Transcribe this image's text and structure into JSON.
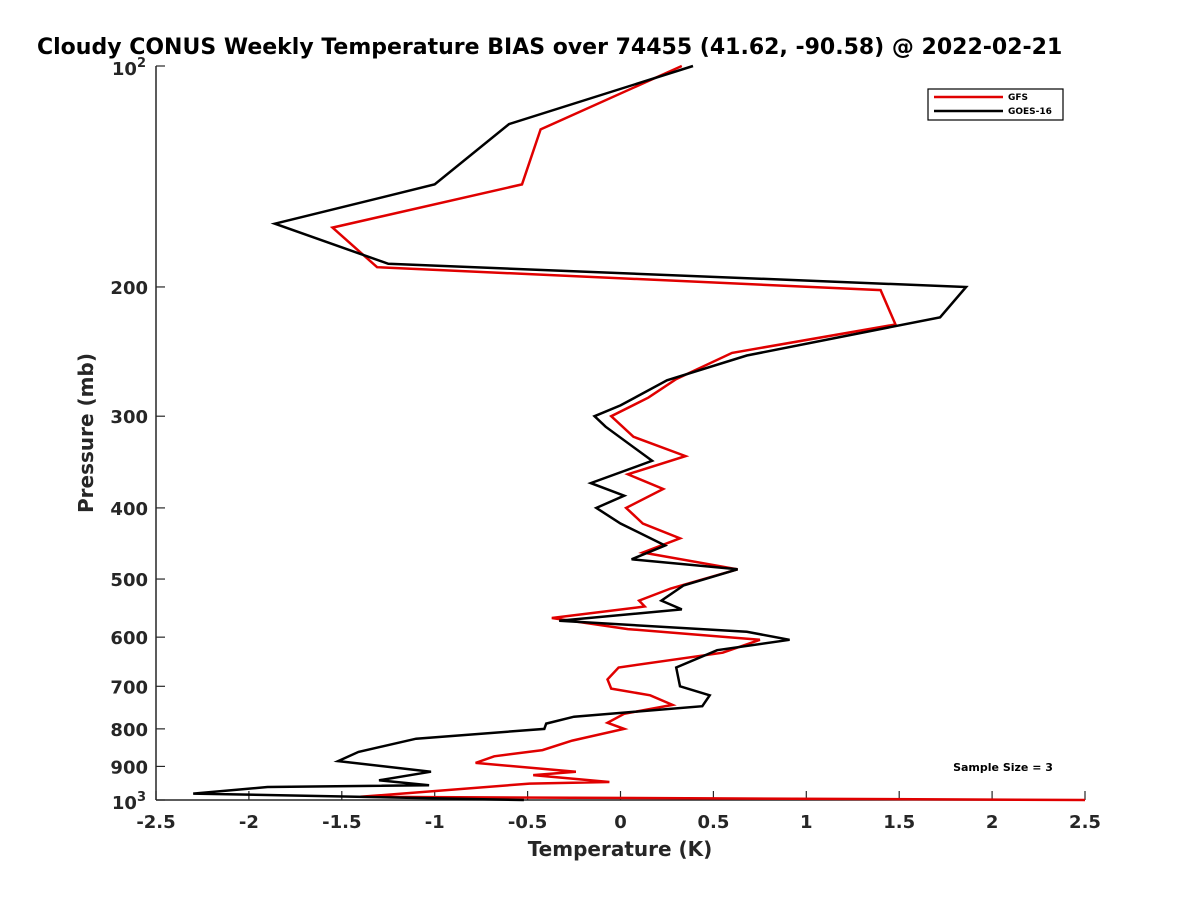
{
  "chart_data": {
    "type": "line",
    "title": "Cloudy CONUS Weekly Temperature BIAS over 74455 (41.62, -90.58) @ 2022-02-21",
    "xlabel": "Temperature (K)",
    "ylabel": "Pressure (mb)",
    "xlim": [
      -2.5,
      2.5
    ],
    "ylim": [
      100,
      1000
    ],
    "y_scale": "log",
    "y_reversed": true,
    "x_ticks": [
      "-2.5",
      "-2",
      "-1.5",
      "-1",
      "-0.5",
      "0",
      "0.5",
      "1",
      "1.5",
      "2",
      "2.5"
    ],
    "y_ticks": [
      {
        "value": 100,
        "base": "10",
        "exp": "2"
      },
      {
        "value": 200,
        "label": "200"
      },
      {
        "value": 300,
        "label": "300"
      },
      {
        "value": 400,
        "label": "400"
      },
      {
        "value": 500,
        "label": "500"
      },
      {
        "value": 600,
        "label": "600"
      },
      {
        "value": 700,
        "label": "700"
      },
      {
        "value": 800,
        "label": "800"
      },
      {
        "value": 900,
        "label": "900"
      },
      {
        "value": 1000,
        "base": "10",
        "exp": "3"
      }
    ],
    "legend_position": "top-right",
    "grid": false,
    "annotation": "Sample Size = 3",
    "series": [
      {
        "name": "GFS",
        "color": "#e00000",
        "points": [
          [
            0.33,
            100
          ],
          [
            -0.43,
            122
          ],
          [
            -0.53,
            145
          ],
          [
            -1.55,
            166
          ],
          [
            -1.31,
            188
          ],
          [
            1.4,
            202
          ],
          [
            1.48,
            225
          ],
          [
            0.6,
            246
          ],
          [
            0.3,
            267
          ],
          [
            0.15,
            283
          ],
          [
            -0.05,
            300
          ],
          [
            0.07,
            320
          ],
          [
            0.35,
            340
          ],
          [
            0.04,
            360
          ],
          [
            0.23,
            377
          ],
          [
            0.03,
            400
          ],
          [
            0.12,
            420
          ],
          [
            0.32,
            440
          ],
          [
            0.12,
            460
          ],
          [
            0.63,
            485
          ],
          [
            0.27,
            515
          ],
          [
            0.1,
            535
          ],
          [
            0.13,
            545
          ],
          [
            -0.37,
            565
          ],
          [
            0.04,
            585
          ],
          [
            0.75,
            605
          ],
          [
            0.55,
            630
          ],
          [
            -0.01,
            660
          ],
          [
            -0.07,
            685
          ],
          [
            -0.05,
            705
          ],
          [
            0.16,
            720
          ],
          [
            0.28,
            742
          ],
          [
            0.02,
            763
          ],
          [
            -0.07,
            785
          ],
          [
            0.02,
            800
          ],
          [
            -0.26,
            830
          ],
          [
            -0.42,
            855
          ],
          [
            -0.68,
            872
          ],
          [
            -0.78,
            890
          ],
          [
            -0.24,
            915
          ],
          [
            -0.47,
            925
          ],
          [
            -0.06,
            945
          ],
          [
            -0.49,
            950
          ],
          [
            -1.4,
            990
          ],
          [
            2.5,
            1000
          ]
        ]
      },
      {
        "name": "GOES-16",
        "color": "#000000",
        "points": [
          [
            0.39,
            100
          ],
          [
            -0.6,
            120
          ],
          [
            -1.0,
            145
          ],
          [
            -1.86,
            164
          ],
          [
            -1.25,
            186
          ],
          [
            1.86,
            200
          ],
          [
            1.72,
            220
          ],
          [
            0.68,
            248
          ],
          [
            0.25,
            268
          ],
          [
            0.0,
            290
          ],
          [
            -0.14,
            300
          ],
          [
            -0.08,
            310
          ],
          [
            0.17,
            345
          ],
          [
            -0.16,
            370
          ],
          [
            0.02,
            385
          ],
          [
            -0.13,
            400
          ],
          [
            0.0,
            420
          ],
          [
            0.24,
            450
          ],
          [
            0.06,
            470
          ],
          [
            0.63,
            485
          ],
          [
            0.34,
            510
          ],
          [
            0.22,
            535
          ],
          [
            0.33,
            550
          ],
          [
            -0.33,
            570
          ],
          [
            0.68,
            590
          ],
          [
            0.91,
            605
          ],
          [
            0.52,
            625
          ],
          [
            0.3,
            660
          ],
          [
            0.32,
            700
          ],
          [
            0.48,
            720
          ],
          [
            0.44,
            745
          ],
          [
            -0.25,
            770
          ],
          [
            -0.4,
            787
          ],
          [
            -0.41,
            800
          ],
          [
            -1.1,
            825
          ],
          [
            -1.41,
            860
          ],
          [
            -1.52,
            885
          ],
          [
            -1.02,
            915
          ],
          [
            -1.3,
            940
          ],
          [
            -1.03,
            955
          ],
          [
            -1.9,
            960
          ],
          [
            -2.3,
            980
          ],
          [
            -0.52,
            1000
          ]
        ]
      }
    ]
  }
}
